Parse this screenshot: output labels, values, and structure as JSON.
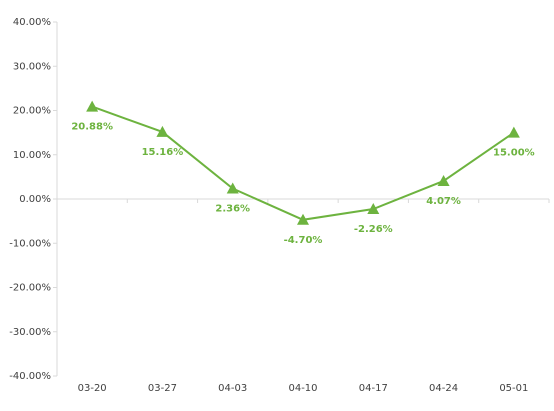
{
  "chart_data": {
    "type": "line",
    "categories": [
      "03-20",
      "03-27",
      "04-03",
      "04-10",
      "04-17",
      "04-24",
      "05-01"
    ],
    "series": [
      {
        "color": "#6db33f",
        "values": [
          20.88,
          15.16,
          2.36,
          -4.7,
          -2.26,
          4.07,
          15.0
        ],
        "value_labels": [
          "20.88%",
          "15.16%",
          "2.36%",
          "-4.70%",
          "-2.26%",
          "4.07%",
          "15.00%"
        ]
      }
    ],
    "ylim": [
      -40,
      40
    ],
    "yticks": [
      {
        "value": -40,
        "label": "-40.00%"
      },
      {
        "value": -30,
        "label": "-30.00%"
      },
      {
        "value": -20,
        "label": "-20.00%"
      },
      {
        "value": -10,
        "label": "-10.00%"
      },
      {
        "value": 0,
        "label": "0.00%"
      },
      {
        "value": 10,
        "label": "10.00%"
      },
      {
        "value": 20,
        "label": "20.00%"
      },
      {
        "value": 30,
        "label": "30.00%"
      },
      {
        "value": 40,
        "label": "40.00%"
      }
    ],
    "grid": false
  }
}
